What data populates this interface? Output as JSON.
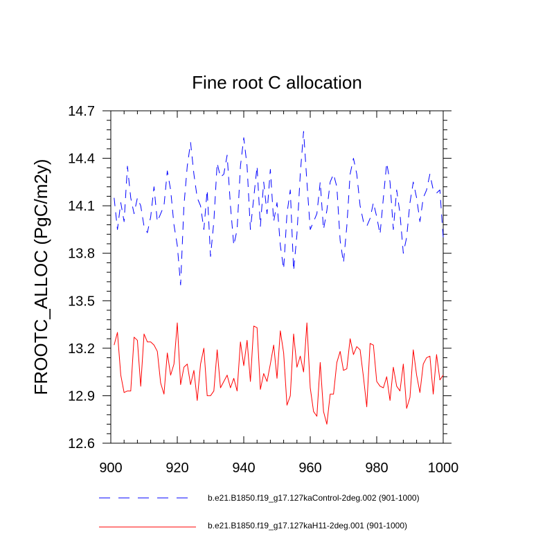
{
  "chart_data": {
    "type": "line",
    "title": "Fine root C allocation",
    "xlabel": "",
    "ylabel": "FROOTC_ALLOC  (PgC/m2y)",
    "xlim": [
      900,
      1000
    ],
    "ylim": [
      12.6,
      14.7
    ],
    "xticks": [
      900,
      920,
      940,
      960,
      980,
      1000
    ],
    "yticks": [
      12.6,
      12.9,
      13.2,
      13.5,
      13.8,
      14.1,
      14.4,
      14.7
    ],
    "ytick_labels": [
      "12.6",
      "12.9",
      "13.2",
      "13.5",
      "13.8",
      "14.1",
      "14.4",
      "14.7"
    ],
    "legend_position": "bottom",
    "x": [
      901,
      902,
      903,
      904,
      905,
      906,
      907,
      908,
      909,
      910,
      911,
      912,
      913,
      914,
      915,
      916,
      917,
      918,
      919,
      920,
      921,
      922,
      923,
      924,
      925,
      926,
      927,
      928,
      929,
      930,
      931,
      932,
      933,
      934,
      935,
      936,
      937,
      938,
      939,
      940,
      941,
      942,
      943,
      944,
      945,
      946,
      947,
      948,
      949,
      950,
      951,
      952,
      953,
      954,
      955,
      956,
      957,
      958,
      959,
      960,
      961,
      962,
      963,
      964,
      965,
      966,
      967,
      968,
      969,
      970,
      971,
      972,
      973,
      974,
      975,
      976,
      977,
      978,
      979,
      980,
      981,
      982,
      983,
      984,
      985,
      986,
      987,
      988,
      989,
      990,
      991,
      992,
      993,
      994,
      995,
      996,
      997,
      998,
      999,
      1000
    ],
    "series": [
      {
        "name": "b.e21.B1850.f19_g17.127kaControl-2deg.002 (901-1000)",
        "color": "#0000ff",
        "style": "dashed",
        "values": [
          14.15,
          13.95,
          14.12,
          14.0,
          14.35,
          14.15,
          14.05,
          14.15,
          14.1,
          13.97,
          13.93,
          14.03,
          14.22,
          14.0,
          14.05,
          14.1,
          14.32,
          14.2,
          13.98,
          13.85,
          13.6,
          14.1,
          14.35,
          14.5,
          14.3,
          14.15,
          14.1,
          13.95,
          14.2,
          13.78,
          14.0,
          14.37,
          14.28,
          14.3,
          14.42,
          14.1,
          13.85,
          13.95,
          14.35,
          14.53,
          14.35,
          13.95,
          14.15,
          14.35,
          13.97,
          14.25,
          14.05,
          14.33,
          14.0,
          14.12,
          13.85,
          13.7,
          14.05,
          14.2,
          13.69,
          13.92,
          14.3,
          14.57,
          14.25,
          13.95,
          14.0,
          14.05,
          14.25,
          13.95,
          14.07,
          14.25,
          14.3,
          14.22,
          13.88,
          13.74,
          13.97,
          14.3,
          14.4,
          14.3,
          14.1,
          14.0,
          13.97,
          14.02,
          14.12,
          14.03,
          13.92,
          14.15,
          14.37,
          14.25,
          13.95,
          14.2,
          14.05,
          13.8,
          13.9,
          14.12,
          14.25,
          14.15,
          14.0,
          14.15,
          14.2,
          14.3,
          14.2,
          14.18,
          14.2,
          13.9
        ]
      },
      {
        "name": "b.e21.B1850.f19_g17.127kaH11-2deg.001 (901-1000)",
        "color": "#ff0000",
        "style": "solid",
        "values": [
          13.22,
          13.3,
          13.03,
          12.92,
          12.93,
          12.93,
          13.27,
          13.25,
          12.96,
          13.29,
          13.24,
          13.24,
          13.22,
          13.18,
          12.98,
          12.91,
          13.17,
          13.03,
          13.1,
          13.36,
          12.97,
          13.08,
          13.1,
          12.97,
          13.06,
          12.87,
          13.1,
          13.2,
          12.9,
          12.9,
          12.93,
          13.19,
          12.95,
          12.99,
          13.03,
          12.95,
          13.01,
          12.93,
          13.24,
          13.09,
          13.25,
          12.99,
          13.34,
          13.33,
          12.94,
          13.04,
          12.99,
          13.1,
          13.22,
          13.01,
          13.31,
          13.17,
          12.84,
          12.9,
          13.29,
          13.08,
          13.15,
          13.05,
          13.36,
          12.95,
          12.8,
          12.77,
          13.11,
          12.8,
          12.72,
          12.91,
          12.91,
          13.11,
          13.18,
          13.06,
          13.07,
          13.26,
          13.16,
          13.21,
          13.19,
          13.02,
          12.83,
          13.23,
          13.22,
          12.99,
          12.96,
          12.95,
          13.02,
          12.87,
          13.08,
          12.96,
          12.93,
          13.1,
          12.82,
          12.89,
          13.19,
          13.03,
          12.92,
          13.1,
          13.14,
          13.15,
          12.91,
          13.16,
          13.0,
          13.03
        ]
      }
    ]
  }
}
